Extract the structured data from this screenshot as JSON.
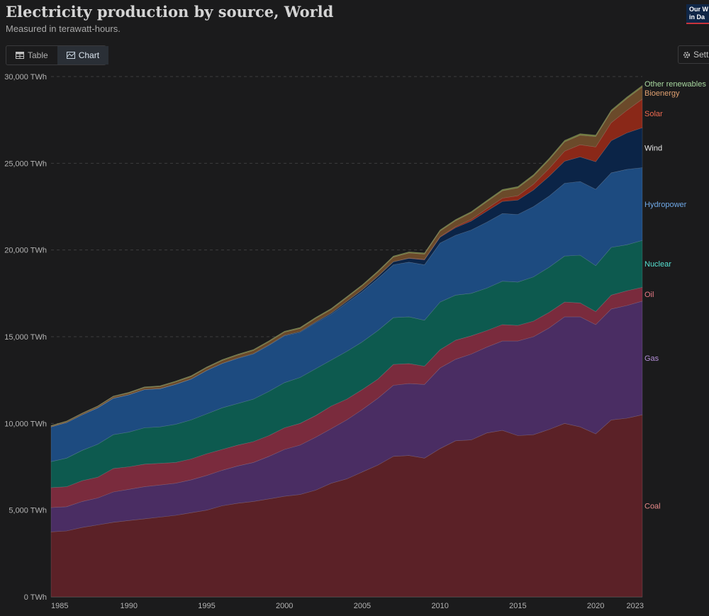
{
  "header": {
    "title": "Electricity production by source, World",
    "subtitle": "Measured in terawatt-hours.",
    "logo_line1": "Our W",
    "logo_line2": "in Da"
  },
  "tabs": [
    {
      "label": "Table",
      "icon": "table-icon"
    },
    {
      "label": "Chart",
      "icon": "chart-icon"
    }
  ],
  "settings_label": "Setti",
  "chart_data": {
    "type": "area",
    "stacked": true,
    "title": "Electricity production by source, World",
    "subtitle": "Measured in terawatt-hours.",
    "ylabel": "TWh",
    "ylim": [
      0,
      30000
    ],
    "yticks": [
      0,
      5000,
      10000,
      15000,
      20000,
      25000,
      30000
    ],
    "ytick_labels": [
      "0 TWh",
      "5,000 TWh",
      "10,000 TWh",
      "15,000 TWh",
      "20,000 TWh",
      "25,000 TWh",
      "30,000 TWh"
    ],
    "xticks": [
      1985,
      1990,
      1995,
      2000,
      2005,
      2010,
      2015,
      2020,
      2023
    ],
    "x": [
      1985,
      1986,
      1987,
      1988,
      1989,
      1990,
      1991,
      1992,
      1993,
      1994,
      1995,
      1996,
      1997,
      1998,
      1999,
      2000,
      2001,
      2002,
      2003,
      2004,
      2005,
      2006,
      2007,
      2008,
      2009,
      2010,
      2011,
      2012,
      2013,
      2014,
      2015,
      2016,
      2017,
      2018,
      2019,
      2020,
      2021,
      2022,
      2023
    ],
    "series": [
      {
        "name": "Coal",
        "color": "#5b2127",
        "label_color": "#e88a8a",
        "values": [
          3750,
          3800,
          4000,
          4150,
          4300,
          4400,
          4500,
          4600,
          4700,
          4850,
          5000,
          5250,
          5400,
          5500,
          5650,
          5800,
          5900,
          6150,
          6550,
          6800,
          7200,
          7600,
          8100,
          8150,
          8000,
          8550,
          9000,
          9050,
          9450,
          9600,
          9300,
          9350,
          9650,
          10000,
          9800,
          9400,
          10200,
          10300,
          10500
        ]
      },
      {
        "name": "Gas",
        "color": "#4a2d63",
        "label_color": "#b48fd8",
        "values": [
          1400,
          1400,
          1500,
          1550,
          1750,
          1800,
          1850,
          1850,
          1850,
          1900,
          2000,
          2050,
          2150,
          2250,
          2450,
          2700,
          2850,
          3050,
          3150,
          3400,
          3600,
          3850,
          4100,
          4150,
          4250,
          4650,
          4700,
          4950,
          4950,
          5150,
          5450,
          5650,
          5850,
          6150,
          6350,
          6300,
          6400,
          6500,
          6550
        ]
      },
      {
        "name": "Oil",
        "color": "#7a2b3d",
        "label_color": "#e87a86",
        "values": [
          1150,
          1150,
          1200,
          1200,
          1350,
          1300,
          1300,
          1250,
          1200,
          1200,
          1250,
          1200,
          1200,
          1200,
          1200,
          1250,
          1250,
          1250,
          1300,
          1200,
          1150,
          1100,
          1200,
          1150,
          1050,
          1050,
          1100,
          1050,
          950,
          950,
          900,
          900,
          900,
          850,
          800,
          750,
          800,
          850,
          800
        ]
      },
      {
        "name": "Nuclear",
        "color": "#0d5a4f",
        "label_color": "#56e0d0",
        "values": [
          1500,
          1650,
          1750,
          1900,
          1950,
          2000,
          2100,
          2100,
          2200,
          2250,
          2300,
          2400,
          2400,
          2450,
          2550,
          2600,
          2650,
          2700,
          2650,
          2750,
          2750,
          2800,
          2700,
          2700,
          2650,
          2750,
          2600,
          2450,
          2450,
          2500,
          2500,
          2550,
          2600,
          2650,
          2750,
          2650,
          2750,
          2650,
          2700
        ]
      },
      {
        "name": "Hydropower",
        "color": "#1d4b80",
        "label_color": "#6fa9e8",
        "values": [
          2000,
          2050,
          2050,
          2100,
          2100,
          2150,
          2200,
          2200,
          2300,
          2350,
          2500,
          2550,
          2600,
          2600,
          2650,
          2700,
          2600,
          2650,
          2650,
          2800,
          2900,
          3000,
          3050,
          3150,
          3200,
          3400,
          3450,
          3650,
          3800,
          3900,
          3900,
          4050,
          4100,
          4200,
          4250,
          4400,
          4300,
          4350,
          4200
        ]
      },
      {
        "name": "Wind",
        "color": "#0b2447",
        "label_color": "#e8e8e8",
        "values": [
          0,
          0,
          0,
          0,
          5,
          5,
          5,
          5,
          10,
          10,
          10,
          15,
          20,
          25,
          30,
          30,
          40,
          50,
          60,
          80,
          100,
          130,
          170,
          220,
          280,
          340,
          440,
          520,
          640,
          700,
          830,
          960,
          1140,
          1270,
          1420,
          1590,
          1850,
          2100,
          2300
        ]
      },
      {
        "name": "Solar",
        "color": "#8a2818",
        "label_color": "#f06a50",
        "values": [
          0,
          0,
          0,
          0,
          0,
          0,
          0,
          0,
          0,
          0,
          0,
          0,
          0,
          0,
          0,
          0,
          0,
          0,
          0,
          0,
          5,
          5,
          10,
          20,
          30,
          30,
          60,
          100,
          140,
          190,
          250,
          330,
          450,
          580,
          700,
          850,
          1040,
          1300,
          1650
        ]
      },
      {
        "name": "Bioenergy",
        "color": "#6b4a2a",
        "label_color": "#e0a070",
        "values": [
          50,
          60,
          70,
          80,
          90,
          100,
          110,
          120,
          130,
          140,
          150,
          160,
          170,
          180,
          180,
          180,
          190,
          200,
          210,
          220,
          230,
          240,
          260,
          290,
          300,
          320,
          340,
          370,
          400,
          420,
          450,
          470,
          500,
          530,
          550,
          600,
          640,
          680,
          700
        ]
      },
      {
        "name": "Other renewables",
        "color": "#6f7a3b",
        "label_color": "#a8d8a0",
        "values": [
          30,
          30,
          30,
          30,
          35,
          40,
          45,
          45,
          50,
          50,
          50,
          55,
          55,
          55,
          55,
          55,
          55,
          60,
          60,
          60,
          60,
          65,
          65,
          65,
          70,
          70,
          70,
          75,
          75,
          80,
          80,
          85,
          85,
          90,
          90,
          90,
          90,
          90,
          90
        ]
      }
    ]
  }
}
